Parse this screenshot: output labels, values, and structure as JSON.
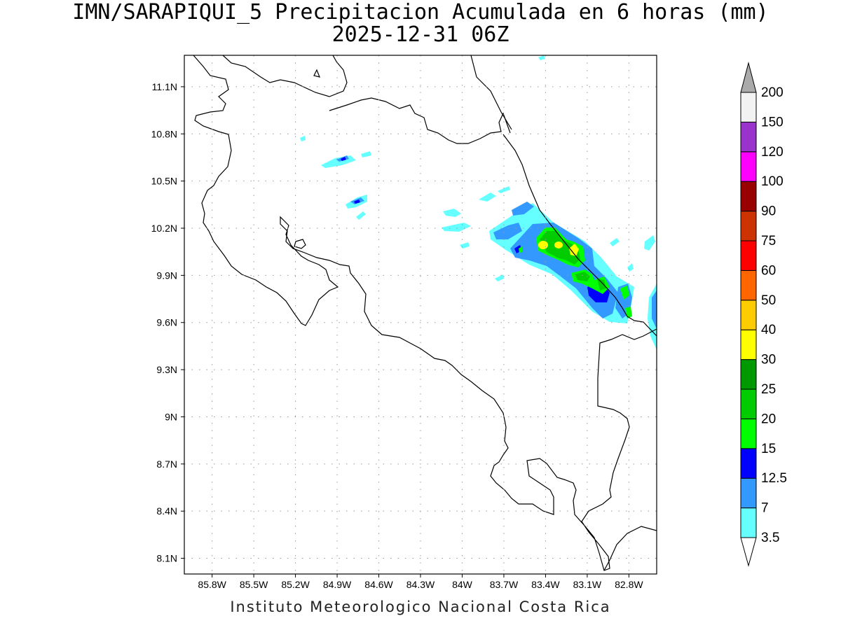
{
  "title": {
    "line1": "IMN/SARAPIQUI_5 Precipitacion Acumulada en 6 horas (mm)",
    "line2": "2025-12-31 06Z"
  },
  "footer": "Instituto Meteorologico Nacional Costa Rica",
  "map": {
    "lon_range": [
      -86.0,
      -82.6
    ],
    "lat_range": [
      8.0,
      11.3
    ],
    "lon_ticks": [
      {
        "value": -85.8,
        "label": "85.8W"
      },
      {
        "value": -85.5,
        "label": "85.5W"
      },
      {
        "value": -85.2,
        "label": "85.2W"
      },
      {
        "value": -84.9,
        "label": "84.9W"
      },
      {
        "value": -84.6,
        "label": "84.6W"
      },
      {
        "value": -84.3,
        "label": "84.3W"
      },
      {
        "value": -84.0,
        "label": "84W"
      },
      {
        "value": -83.7,
        "label": "83.7W"
      },
      {
        "value": -83.4,
        "label": "83.4W"
      },
      {
        "value": -83.1,
        "label": "83.1W"
      },
      {
        "value": -82.8,
        "label": "82.8W"
      }
    ],
    "lat_ticks": [
      {
        "value": 11.1,
        "label": "11.1N"
      },
      {
        "value": 10.8,
        "label": "10.8N"
      },
      {
        "value": 10.5,
        "label": "10.5N"
      },
      {
        "value": 10.2,
        "label": "10.2N"
      },
      {
        "value": 9.9,
        "label": "9.9N"
      },
      {
        "value": 9.6,
        "label": "9.6N"
      },
      {
        "value": 9.3,
        "label": "9.3N"
      },
      {
        "value": 9.0,
        "label": "9N"
      },
      {
        "value": 8.7,
        "label": "8.7N"
      },
      {
        "value": 8.4,
        "label": "8.4N"
      },
      {
        "value": 8.1,
        "label": "8.1N"
      }
    ],
    "grid": true
  },
  "colorbar": {
    "levels": [
      "3.5",
      "7",
      "12.5",
      "15",
      "20",
      "25",
      "30",
      "40",
      "50",
      "60",
      "75",
      "90",
      "100",
      "120",
      "150",
      "200"
    ],
    "colors": [
      "#ffffff",
      "#66ffff",
      "#3399ff",
      "#0000ff",
      "#00ff00",
      "#00cc00",
      "#009900",
      "#ffff00",
      "#ffcc00",
      "#ff6600",
      "#ff0000",
      "#cc3300",
      "#990000",
      "#ff00ff",
      "#9933cc",
      "#f2f2f2",
      "#aaaaaa"
    ]
  }
}
